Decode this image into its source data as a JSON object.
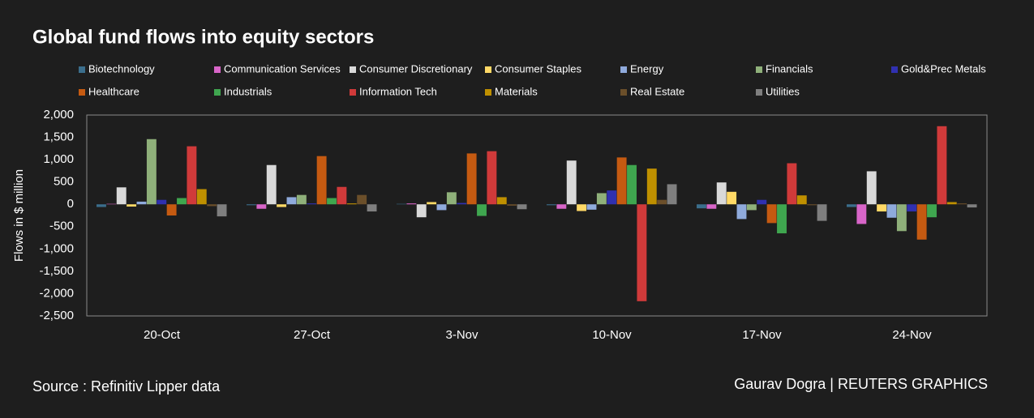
{
  "chart_data": {
    "type": "bar",
    "title": "Global fund flows into equity sectors",
    "y_label": "Flows in $ million",
    "source": "Source : Refinitiv Lipper data",
    "credit": "Gaurav Dogra | REUTERS GRAPHICS",
    "categories": [
      "20-Oct",
      "27-Oct",
      "3-Nov",
      "10-Nov",
      "17-Nov",
      "24-Nov"
    ],
    "ylim": [
      -2500,
      2000
    ],
    "yticks": [
      {
        "value": 2000,
        "label": "2,000"
      },
      {
        "value": 1500,
        "label": "1,500"
      },
      {
        "value": 1000,
        "label": "1,000"
      },
      500,
      0,
      -500,
      {
        "value": -1000,
        "label": "-1,000"
      },
      {
        "value": -1500,
        "label": "-1,500"
      },
      {
        "value": -2000,
        "label": "-2,000"
      },
      {
        "value": -2500,
        "label": "-2,500"
      }
    ],
    "grid": false,
    "series": [
      {
        "name": "Biotechnology",
        "color": "#3b6e8c",
        "values": [
          -60,
          -20,
          10,
          -20,
          -90,
          -60
        ]
      },
      {
        "name": "Communication Services",
        "color": "#d865c8",
        "values": [
          10,
          -100,
          20,
          -100,
          -100,
          -440
        ]
      },
      {
        "name": "Consumer Discretionary",
        "color": "#d9d9d9",
        "values": [
          380,
          880,
          -290,
          980,
          490,
          740
        ]
      },
      {
        "name": "Consumer Staples",
        "color": "#ffd966",
        "values": [
          -50,
          -60,
          50,
          -150,
          280,
          -160
        ]
      },
      {
        "name": "Energy",
        "color": "#8faadc",
        "values": [
          60,
          160,
          -130,
          -120,
          -330,
          -300
        ]
      },
      {
        "name": "Financials",
        "color": "#8fb07a",
        "values": [
          1460,
          210,
          270,
          250,
          -130,
          -600
        ]
      },
      {
        "name": "Gold&Prec Metals",
        "color": "#3030b0",
        "values": [
          100,
          20,
          30,
          310,
          100,
          -160
        ]
      },
      {
        "name": "Healthcare",
        "color": "#c55a11",
        "values": [
          -250,
          1080,
          1140,
          1050,
          -420,
          -790
        ]
      },
      {
        "name": "Industrials",
        "color": "#3fa64f",
        "values": [
          140,
          140,
          -260,
          880,
          -650,
          -290
        ]
      },
      {
        "name": "Information Tech",
        "color": "#d03a3a",
        "values": [
          1300,
          390,
          1190,
          -2170,
          920,
          1750
        ]
      },
      {
        "name": "Materials",
        "color": "#bf9000",
        "values": [
          340,
          20,
          160,
          800,
          200,
          50
        ]
      },
      {
        "name": "Real Estate",
        "color": "#6b4f2a",
        "values": [
          -40,
          210,
          -30,
          100,
          -20,
          20
        ]
      },
      {
        "name": "Utilities",
        "color": "#7f7f7f",
        "values": [
          -270,
          -160,
          -110,
          450,
          -370,
          -70
        ]
      }
    ]
  }
}
